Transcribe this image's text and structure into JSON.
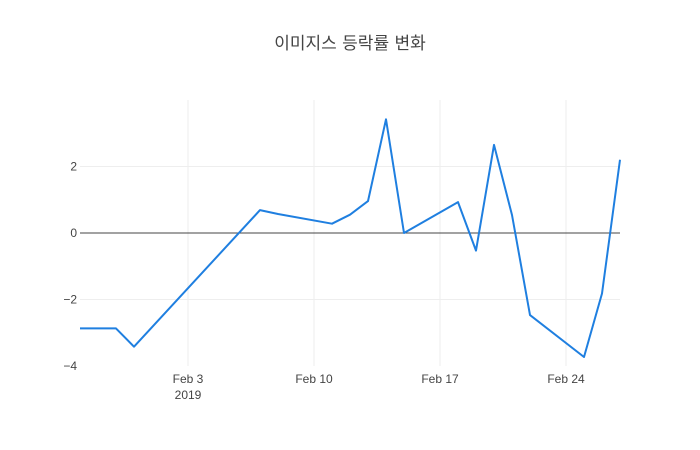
{
  "chart_data": {
    "type": "line",
    "title": "이미지스 등락률 변화",
    "xlabel": "",
    "ylabel": "",
    "x": [
      "2019-01-28",
      "2019-01-29",
      "2019-01-30",
      "2019-01-31",
      "2019-02-07",
      "2019-02-08",
      "2019-02-11",
      "2019-02-12",
      "2019-02-13",
      "2019-02-14",
      "2019-02-15",
      "2019-02-18",
      "2019-02-19",
      "2019-02-20",
      "2019-02-21",
      "2019-02-22",
      "2019-02-25",
      "2019-02-26",
      "2019-02-27"
    ],
    "series": [
      {
        "name": "",
        "color": "#1f7fe0",
        "values": [
          -2.87,
          -2.87,
          -2.87,
          -3.42,
          0.69,
          0.57,
          0.28,
          0.55,
          0.96,
          3.42,
          0.0,
          0.93,
          -0.53,
          2.65,
          0.54,
          -2.47,
          -3.73,
          -1.82,
          2.2
        ]
      }
    ],
    "xlim": [
      "2019-01-28",
      "2019-02-27"
    ],
    "ylim": [
      -4,
      4
    ],
    "xticks": [
      {
        "date": "2019-02-03",
        "label": "Feb 3",
        "sublabel": "2019"
      },
      {
        "date": "2019-02-10",
        "label": "Feb 10",
        "sublabel": ""
      },
      {
        "date": "2019-02-17",
        "label": "Feb 17",
        "sublabel": ""
      },
      {
        "date": "2019-02-24",
        "label": "Feb 24",
        "sublabel": ""
      }
    ],
    "yticks": [
      {
        "value": 2,
        "label": "2"
      },
      {
        "value": 0,
        "label": "0"
      },
      {
        "value": -2,
        "label": "−2"
      },
      {
        "value": -4,
        "label": "−4"
      }
    ],
    "grid": true,
    "legend": "none"
  }
}
